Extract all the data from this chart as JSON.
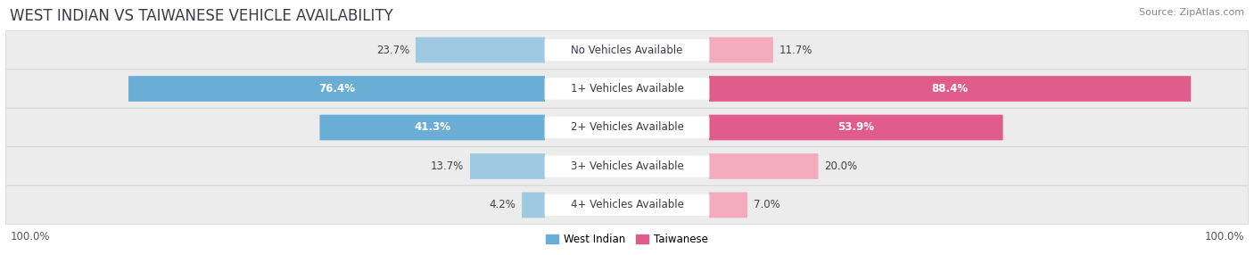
{
  "title": "WEST INDIAN VS TAIWANESE VEHICLE AVAILABILITY",
  "source": "Source: ZipAtlas.com",
  "categories": [
    "No Vehicles Available",
    "1+ Vehicles Available",
    "2+ Vehicles Available",
    "3+ Vehicles Available",
    "4+ Vehicles Available"
  ],
  "west_indian": [
    23.7,
    76.4,
    41.3,
    13.7,
    4.2
  ],
  "taiwanese": [
    11.7,
    88.4,
    53.9,
    20.0,
    7.0
  ],
  "west_indian_color_large": "#6aaed6",
  "west_indian_color_small": "#9ecae1",
  "taiwanese_color_large": "#e05c8a",
  "taiwanese_color_small": "#f4abbe",
  "row_bg_color": "#ececec",
  "max_val": 100.0,
  "legend_west_indian": "West Indian",
  "legend_taiwanese": "Taiwanese",
  "title_fontsize": 12,
  "label_fontsize": 8.5,
  "value_fontsize": 8.5,
  "source_fontsize": 8,
  "large_threshold": 30
}
